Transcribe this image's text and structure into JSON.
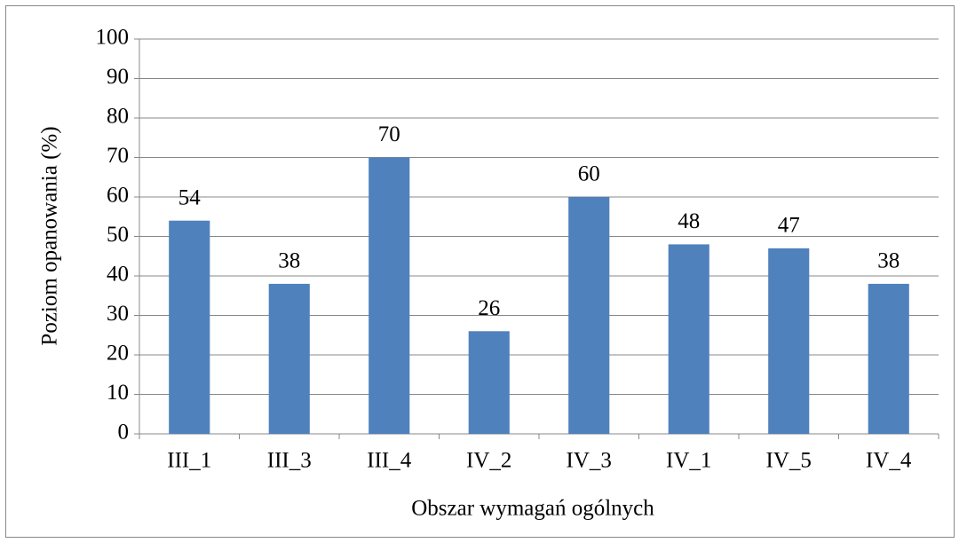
{
  "chart_data": {
    "type": "bar",
    "x_label": "Obszar wymagań ogólnych",
    "y_label": "Poziom opanowania (%)",
    "categories": [
      "III_1",
      "III_3",
      "III_4",
      "IV_2",
      "IV_3",
      "IV_1",
      "IV_5",
      "IV_4"
    ],
    "values": [
      54,
      38,
      70,
      26,
      60,
      48,
      47,
      38
    ],
    "color": "#4f81bd",
    "ylim": [
      0,
      100
    ],
    "yticks": [
      0,
      10,
      20,
      30,
      40,
      50,
      60,
      70,
      80,
      90,
      100
    ],
    "grid": true
  }
}
